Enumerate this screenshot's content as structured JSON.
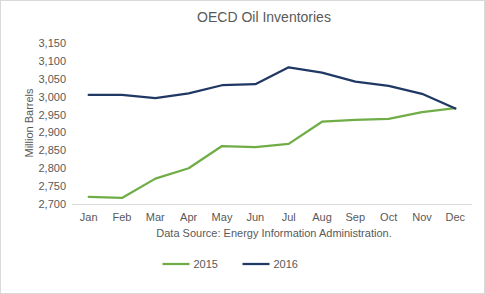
{
  "chart_data": {
    "type": "line",
    "title": "OECD Oil Inventories",
    "y_label": "Million Barrels",
    "x_label": "Data Source: Energy Information Administration.",
    "categories": [
      "Jan",
      "Feb",
      "Mar",
      "Apr",
      "May",
      "Jun",
      "Jul",
      "Aug",
      "Sep",
      "Oct",
      "Nov",
      "Dec"
    ],
    "series": [
      {
        "name": "2015",
        "color": "#70ad47",
        "values": [
          2720,
          2717,
          2771,
          2800,
          2862,
          2859,
          2868,
          2930,
          2935,
          2938,
          2957,
          2968
        ]
      },
      {
        "name": "2016",
        "color": "#203864",
        "values": [
          3005,
          3005,
          2996,
          3009,
          3032,
          3035,
          3082,
          3067,
          3042,
          3030,
          3008,
          2967
        ]
      }
    ],
    "ylim": [
      2700,
      3150
    ],
    "yticks": [
      {
        "value": 2700,
        "label": "2,700"
      },
      {
        "value": 2750,
        "label": "2,750"
      },
      {
        "value": 2800,
        "label": "2,800"
      },
      {
        "value": 2850,
        "label": "2,850"
      },
      {
        "value": 2900,
        "label": "2,900"
      },
      {
        "value": 2950,
        "label": "2,950"
      },
      {
        "value": 3000,
        "label": "3,000"
      },
      {
        "value": 3050,
        "label": "3,050"
      },
      {
        "value": 3100,
        "label": "3,100"
      },
      {
        "value": 3150,
        "label": "3,150"
      }
    ],
    "grid": false,
    "legend": "bottom"
  }
}
